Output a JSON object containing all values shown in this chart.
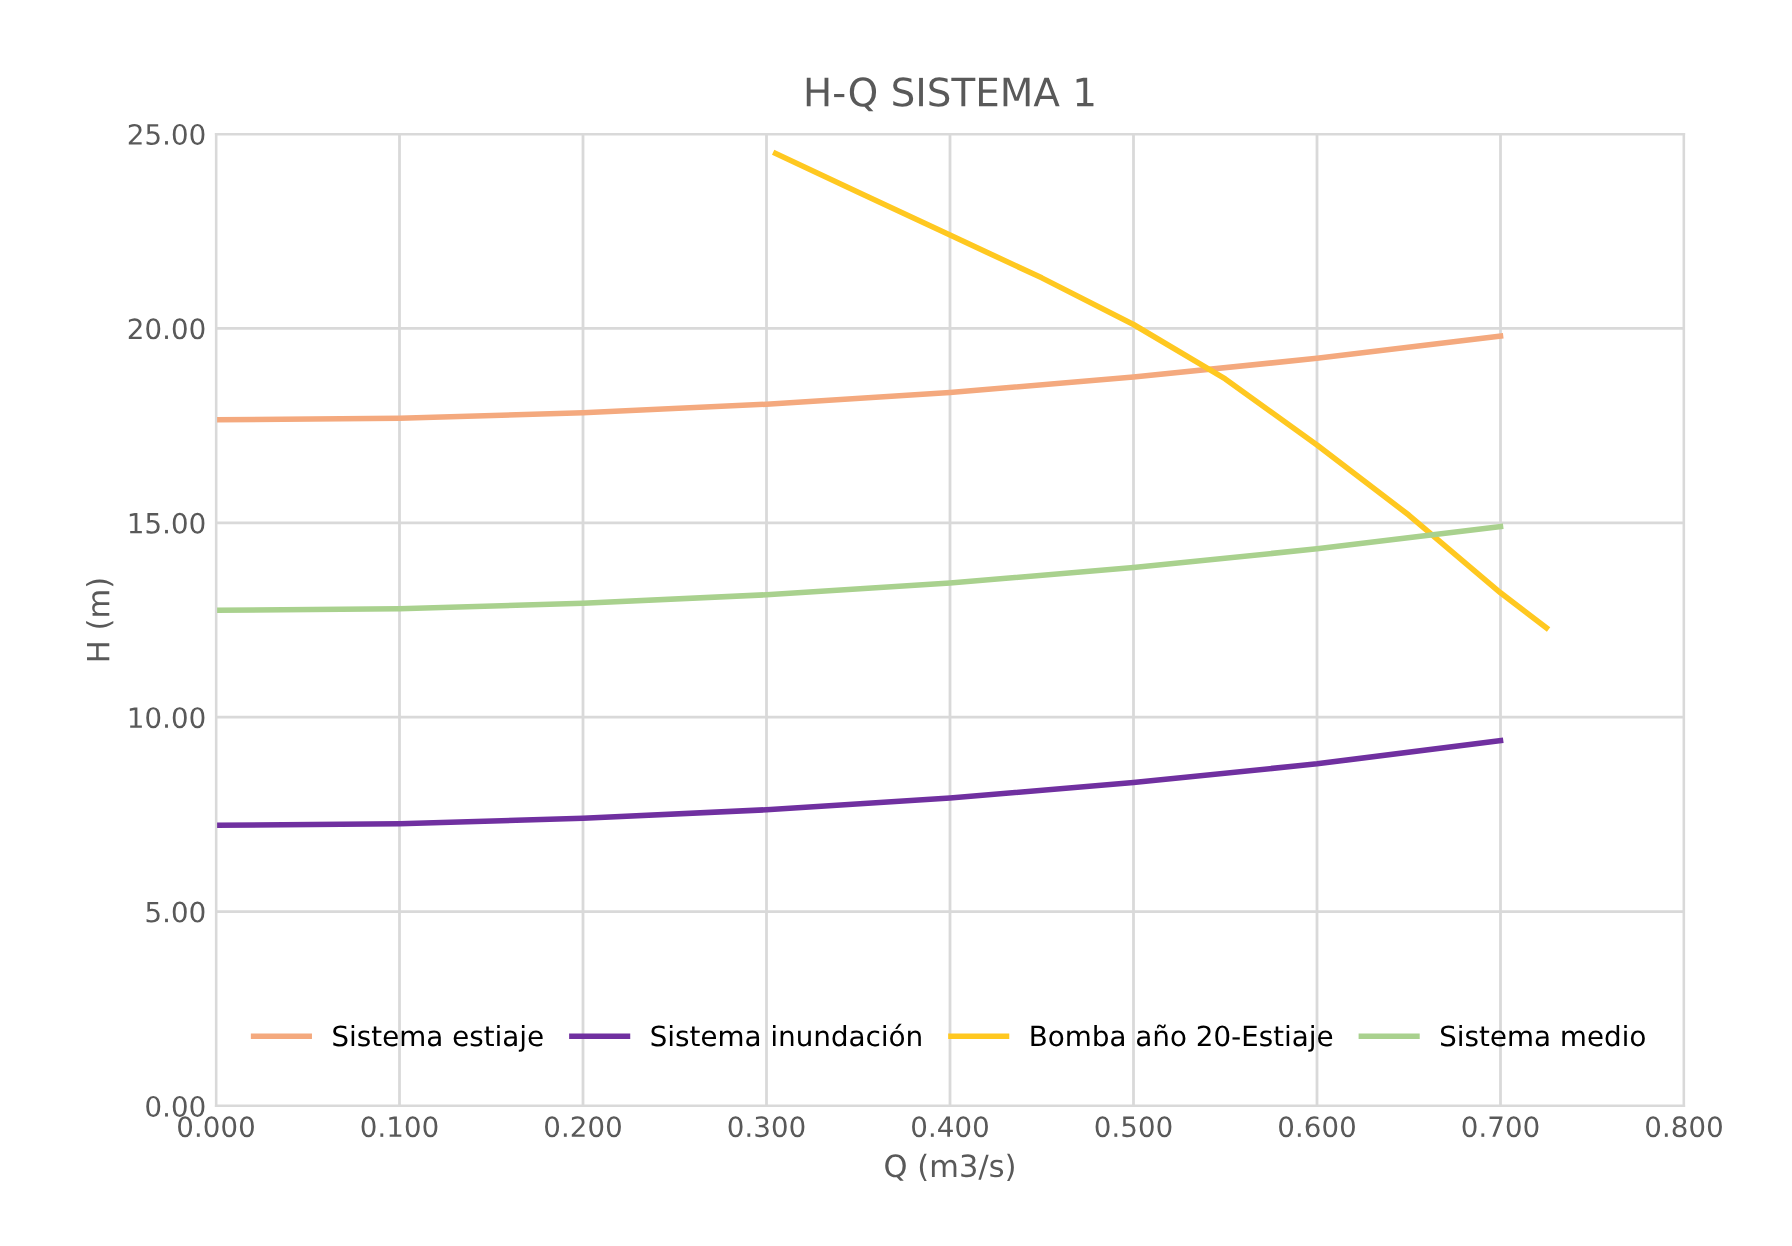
{
  "chart_data": {
    "type": "line",
    "title": "H-Q SISTEMA 1",
    "xlabel": "Q (m3/s)",
    "ylabel": "H (m)",
    "series": [
      {
        "name": "Sistema estiaje",
        "color": "#f4a97e",
        "x": [
          0,
          0.1,
          0.2,
          0.3,
          0.4,
          0.5,
          0.6,
          0.7
        ],
        "values": [
          17.65,
          17.69,
          17.83,
          18.05,
          18.35,
          18.75,
          19.23,
          19.8
        ]
      },
      {
        "name": "Sistema inundación",
        "color": "#7030a0",
        "x": [
          0,
          0.1,
          0.2,
          0.3,
          0.4,
          0.5,
          0.6,
          0.7
        ],
        "values": [
          7.22,
          7.26,
          7.4,
          7.62,
          7.92,
          8.32,
          8.8,
          9.4
        ]
      },
      {
        "name": "Bomba año 20-Estiaje",
        "color": "#ffc820",
        "x": [
          0.305,
          0.35,
          0.4,
          0.45,
          0.5,
          0.55,
          0.6,
          0.65,
          0.7,
          0.725
        ],
        "values": [
          24.5,
          23.5,
          22.4,
          21.3,
          20.1,
          18.7,
          17.0,
          15.2,
          13.2,
          12.3
        ]
      },
      {
        "name": "Sistema medio",
        "color": "#a9d18e",
        "x": [
          0,
          0.1,
          0.2,
          0.3,
          0.4,
          0.5,
          0.6,
          0.7
        ],
        "values": [
          12.75,
          12.79,
          12.93,
          13.15,
          13.45,
          13.85,
          14.33,
          14.9
        ]
      }
    ],
    "xlim": [
      0,
      0.8
    ],
    "ylim": [
      0,
      25
    ],
    "xticks": [
      {
        "value": 0,
        "label": "0.000"
      },
      {
        "value": 0.1,
        "label": "0.100"
      },
      {
        "value": 0.2,
        "label": "0.200"
      },
      {
        "value": 0.3,
        "label": "0.300"
      },
      {
        "value": 0.4,
        "label": "0.400"
      },
      {
        "value": 0.5,
        "label": "0.500"
      },
      {
        "value": 0.6,
        "label": "0.600"
      },
      {
        "value": 0.7,
        "label": "0.700"
      },
      {
        "value": 0.8,
        "label": "0.800"
      }
    ],
    "yticks": [
      {
        "value": 0,
        "label": "0.00"
      },
      {
        "value": 5,
        "label": "5.00"
      },
      {
        "value": 10,
        "label": "10.00"
      },
      {
        "value": 15,
        "label": "15.00"
      },
      {
        "value": 20,
        "label": "20.00"
      },
      {
        "value": 25,
        "label": "25.00"
      }
    ],
    "grid": true,
    "legend": "bottom",
    "marker": "none",
    "line_style": "solid"
  }
}
